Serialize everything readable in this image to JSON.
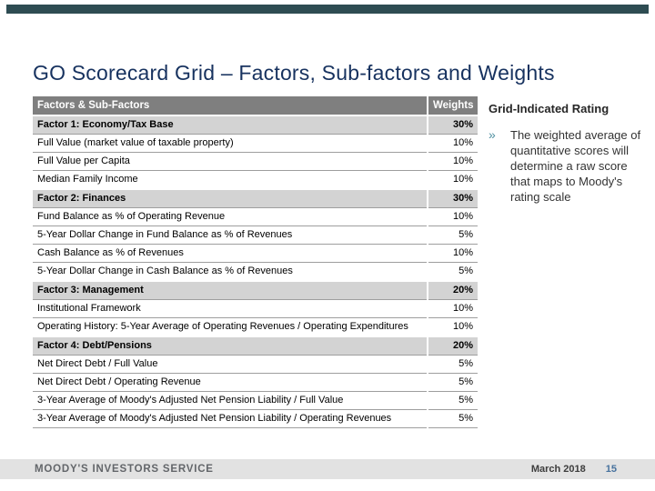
{
  "slide": {
    "title": "GO Scorecard Grid – Factors, Sub-factors and Weights"
  },
  "table": {
    "header": {
      "factors": "Factors & Sub-Factors",
      "weights": "Weights"
    },
    "rows": [
      {
        "label": "Factor 1: Economy/Tax Base",
        "weight": "30%",
        "type": "factor"
      },
      {
        "label": "Full Value (market value of taxable property)",
        "weight": "10%",
        "type": "sub"
      },
      {
        "label": "Full Value per Capita",
        "weight": "10%",
        "type": "sub"
      },
      {
        "label": "Median Family Income",
        "weight": "10%",
        "type": "sub"
      },
      {
        "label": "Factor 2: Finances",
        "weight": "30%",
        "type": "factor"
      },
      {
        "label": "Fund Balance as % of Operating Revenue",
        "weight": "10%",
        "type": "sub"
      },
      {
        "label": "5-Year Dollar Change in Fund Balance as % of Revenues",
        "weight": "5%",
        "type": "sub"
      },
      {
        "label": "Cash Balance as % of Revenues",
        "weight": "10%",
        "type": "sub"
      },
      {
        "label": "5-Year Dollar Change in Cash Balance as % of Revenues",
        "weight": "5%",
        "type": "sub"
      },
      {
        "label": "Factor 3: Management",
        "weight": "20%",
        "type": "factor"
      },
      {
        "label": "Institutional Framework",
        "weight": "10%",
        "type": "sub"
      },
      {
        "label": "Operating History: 5-Year Average of Operating Revenues / Operating Expenditures",
        "weight": "10%",
        "type": "sub"
      },
      {
        "label": "Factor 4: Debt/Pensions",
        "weight": "20%",
        "type": "factor"
      },
      {
        "label": "Net Direct Debt / Full Value",
        "weight": "5%",
        "type": "sub"
      },
      {
        "label": "Net Direct Debt / Operating Revenue",
        "weight": "5%",
        "type": "sub"
      },
      {
        "label": "3-Year Average of Moody's Adjusted Net Pension Liability / Full Value",
        "weight": "5%",
        "type": "sub"
      },
      {
        "label": "3-Year Average of Moody's Adjusted Net Pension Liability / Operating Revenues",
        "weight": "5%",
        "type": "sub"
      }
    ]
  },
  "sidebar": {
    "heading": "Grid-Indicated Rating",
    "bullet_char": "»",
    "bullet_text": "The weighted average of quantitative scores will determine a raw score that maps to Moody's rating scale"
  },
  "footer": {
    "brand": "MOODY'S INVESTORS SERVICE",
    "date": "March 2018",
    "page_number": "15"
  },
  "colors": {
    "accent_bar": "#2e4c52",
    "title_text": "#17325f",
    "table_header_bg": "#7f7f7f",
    "factor_row_bg": "#d3d3d3",
    "row_border": "#9e9e9e",
    "bullet_accent": "#4e8fa0",
    "footer_bg": "#e2e2e2",
    "brand_text": "#63666a",
    "page_number_text": "#47729e"
  }
}
